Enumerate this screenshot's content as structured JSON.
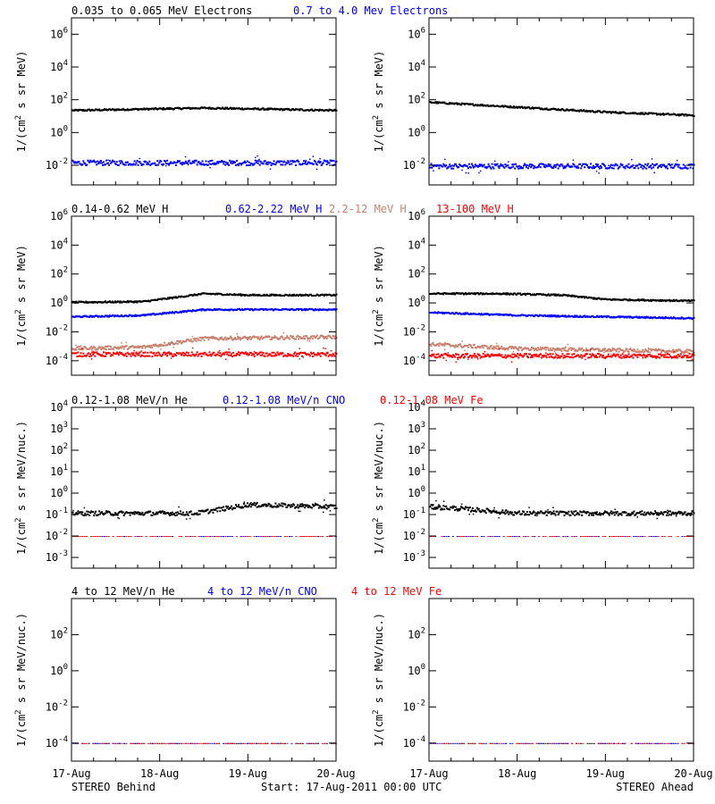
{
  "colors": {
    "black": "#000000",
    "blue": "#0000ff",
    "tan": "#c8806c",
    "red": "#ff0000"
  },
  "rows": [
    {
      "labels": [
        {
          "text": "0.035 to 0.065 MeV Electrons",
          "color": "black"
        },
        {
          "text": "0.7 to 4.0 Mev Electrons",
          "color": "blue"
        }
      ],
      "ylabel": "1/(cm2 s sr MeV)",
      "ylabel_parts": [
        "1/(cm",
        "2",
        " s sr MeV)"
      ],
      "yticks": [
        {
          "exp": "-2",
          "v": -2
        },
        {
          "exp": "0",
          "v": 0
        },
        {
          "exp": "2",
          "v": 2
        },
        {
          "exp": "4",
          "v": 4
        },
        {
          "exp": "6",
          "v": 6
        }
      ]
    },
    {
      "labels": [
        {
          "text": "0.14-0.62 MeV H",
          "color": "black"
        },
        {
          "text": "0.62-2.22 MeV H",
          "color": "blue"
        },
        {
          "text": "2.2-12 MeV H",
          "color": "tan"
        },
        {
          "text": "13-100 MeV H",
          "color": "red"
        }
      ],
      "ylabel": "1/(cm2 s sr MeV)",
      "ylabel_parts": [
        "1/(cm",
        "2",
        " s sr MeV)"
      ],
      "yticks": [
        {
          "exp": "-4",
          "v": -4
        },
        {
          "exp": "-2",
          "v": -2
        },
        {
          "exp": "0",
          "v": 0
        },
        {
          "exp": "2",
          "v": 2
        },
        {
          "exp": "4",
          "v": 4
        },
        {
          "exp": "6",
          "v": 6
        }
      ]
    },
    {
      "labels": [
        {
          "text": "0.12-1.08 MeV/n He",
          "color": "black"
        },
        {
          "text": "0.12-1.08 MeV/n CNO",
          "color": "blue"
        },
        {
          "text": "0.12-1.08 MeV Fe",
          "color": "red"
        }
      ],
      "ylabel": "1/(cm2 s sr MeV/nuc.)",
      "ylabel_parts": [
        "1/(cm",
        "2",
        " s sr MeV/nuc.)"
      ],
      "yticks": [
        {
          "exp": "-3",
          "v": -3
        },
        {
          "exp": "-2",
          "v": -2
        },
        {
          "exp": "-1",
          "v": -1
        },
        {
          "exp": "0",
          "v": 0
        },
        {
          "exp": "1",
          "v": 1
        },
        {
          "exp": "2",
          "v": 2
        },
        {
          "exp": "3",
          "v": 3
        },
        {
          "exp": "4",
          "v": 4
        }
      ]
    },
    {
      "labels": [
        {
          "text": "4 to 12 MeV/n He",
          "color": "black"
        },
        {
          "text": "4 to 12 MeV/n CNO",
          "color": "blue"
        },
        {
          "text": "4 to 12 MeV Fe",
          "color": "red"
        }
      ],
      "ylabel": "1/(cm2 s sr MeV/nuc.)",
      "ylabel_parts": [
        "1/(cm",
        "2",
        " s sr MeV/nuc.)"
      ],
      "yticks": [
        {
          "exp": "-4",
          "v": -4
        },
        {
          "exp": "-2",
          "v": -2
        },
        {
          "exp": "0",
          "v": 0
        },
        {
          "exp": "2",
          "v": 2
        }
      ]
    }
  ],
  "xticks": [
    "17-Aug",
    "18-Aug",
    "19-Aug",
    "20-Aug"
  ],
  "footer": {
    "left": "STEREO Behind",
    "center": "Start: 17-Aug-2011 00:00 UTC",
    "right": "STEREO Ahead"
  },
  "chart_data": [
    {
      "type": "scatter",
      "spacecraft": "STEREO Behind",
      "ylim_log10": [
        -3.2,
        7
      ],
      "xlim_days": [
        0,
        3
      ],
      "series": [
        {
          "name": "0.035 to 0.065 MeV Electrons",
          "color": "black",
          "x": [
            0,
            1,
            1.5,
            2,
            3
          ],
          "y_log10": [
            1.4,
            1.5,
            1.55,
            1.5,
            1.4
          ],
          "spread": 0.05
        },
        {
          "name": "0.7 to 4.0 Mev Electrons",
          "color": "blue",
          "x": [
            0,
            3
          ],
          "y_log10": [
            -1.8,
            -1.8
          ],
          "spread": 0.15
        }
      ]
    },
    {
      "type": "scatter",
      "spacecraft": "STEREO Ahead",
      "ylim_log10": [
        -3.2,
        7
      ],
      "xlim_days": [
        0,
        3
      ],
      "series": [
        {
          "name": "0.035 to 0.065 MeV Electrons",
          "color": "black",
          "x": [
            0,
            1,
            2,
            3
          ],
          "y_log10": [
            1.9,
            1.6,
            1.3,
            1.1
          ],
          "spread": 0.05
        },
        {
          "name": "0.7 to 4.0 Mev Electrons",
          "color": "blue",
          "x": [
            0,
            3
          ],
          "y_log10": [
            -2.0,
            -2.0
          ],
          "spread": 0.15
        }
      ]
    },
    {
      "type": "scatter",
      "spacecraft": "STEREO Behind",
      "ylim_log10": [
        -5,
        6
      ],
      "xlim_days": [
        0,
        3
      ],
      "series": [
        {
          "name": "0.14-0.62 MeV H",
          "color": "black",
          "x": [
            0,
            0.8,
            1.5,
            2,
            3
          ],
          "y_log10": [
            0.1,
            0.15,
            0.7,
            0.6,
            0.6
          ],
          "spread": 0.05
        },
        {
          "name": "0.62-2.22 MeV H",
          "color": "blue",
          "x": [
            0,
            0.8,
            1.5,
            3
          ],
          "y_log10": [
            -0.9,
            -0.8,
            -0.4,
            -0.4
          ],
          "spread": 0.05
        },
        {
          "name": "2.2-12 MeV H",
          "color": "tan",
          "x": [
            0,
            0.8,
            1.5,
            3
          ],
          "y_log10": [
            -3.1,
            -3,
            -2.4,
            -2.3
          ],
          "spread": 0.12
        },
        {
          "name": "13-100 MeV H",
          "color": "red",
          "x": [
            0,
            3
          ],
          "y_log10": [
            -3.5,
            -3.5
          ],
          "spread": 0.15
        }
      ]
    },
    {
      "type": "scatter",
      "spacecraft": "STEREO Ahead",
      "ylim_log10": [
        -5,
        6
      ],
      "xlim_days": [
        0,
        3
      ],
      "series": [
        {
          "name": "0.14-0.62 MeV H",
          "color": "black",
          "x": [
            0,
            0.8,
            1.5,
            2,
            3
          ],
          "y_log10": [
            0.7,
            0.7,
            0.6,
            0.3,
            0.2
          ],
          "spread": 0.05
        },
        {
          "name": "0.62-2.22 MeV H",
          "color": "blue",
          "x": [
            0,
            1,
            2,
            3
          ],
          "y_log10": [
            -0.6,
            -0.8,
            -0.9,
            -1
          ],
          "spread": 0.05
        },
        {
          "name": "2.2-12 MeV H",
          "color": "tan",
          "x": [
            0,
            1,
            3
          ],
          "y_log10": [
            -2.8,
            -3.1,
            -3.3
          ],
          "spread": 0.12
        },
        {
          "name": "13-100 MeV H",
          "color": "red",
          "x": [
            0,
            3
          ],
          "y_log10": [
            -3.6,
            -3.6
          ],
          "spread": 0.15
        }
      ]
    },
    {
      "type": "scatter",
      "spacecraft": "STEREO Behind",
      "ylim_log10": [
        -3.5,
        4
      ],
      "xlim_days": [
        0,
        3
      ],
      "series": [
        {
          "name": "0.12-1.08 MeV/n He",
          "color": "black",
          "x": [
            0,
            1.4,
            2,
            3
          ],
          "y_log10": [
            -0.9,
            -0.9,
            -0.5,
            -0.6
          ],
          "spread": 0.1
        },
        {
          "name": "0.12-1.08 MeV/n CNO",
          "color": "blue",
          "x": [
            0,
            3
          ],
          "y_log10": [
            -2,
            -2
          ],
          "spread": 0
        },
        {
          "name": "0.12-1.08 MeV Fe",
          "color": "red",
          "x": [
            0,
            3
          ],
          "y_log10": [
            -2,
            -2
          ],
          "spread": 0
        }
      ]
    },
    {
      "type": "scatter",
      "spacecraft": "STEREO Ahead",
      "ylim_log10": [
        -3.5,
        4
      ],
      "xlim_days": [
        0,
        3
      ],
      "series": [
        {
          "name": "0.12-1.08 MeV/n He",
          "color": "black",
          "x": [
            0,
            0.4,
            1,
            3
          ],
          "y_log10": [
            -0.6,
            -0.7,
            -0.9,
            -0.9
          ],
          "spread": 0.1
        },
        {
          "name": "0.12-1.08 MeV/n CNO",
          "color": "blue",
          "x": [
            0,
            3
          ],
          "y_log10": [
            -2,
            -2
          ],
          "spread": 0
        },
        {
          "name": "0.12-1.08 MeV Fe",
          "color": "red",
          "x": [
            0,
            3
          ],
          "y_log10": [
            -2,
            -2
          ],
          "spread": 0
        }
      ]
    },
    {
      "type": "scatter",
      "spacecraft": "STEREO Behind",
      "ylim_log10": [
        -5,
        4
      ],
      "xlim_days": [
        0,
        3
      ],
      "series": [
        {
          "name": "4 to 12 MeV/n He",
          "color": "black",
          "x": [
            0,
            3
          ],
          "y_log10": [
            -4,
            -4
          ],
          "spread": 0
        },
        {
          "name": "4 to 12 MeV/n CNO",
          "color": "blue",
          "x": [
            0,
            3
          ],
          "y_log10": [
            -4,
            -4
          ],
          "spread": 0
        },
        {
          "name": "4 to 12 MeV Fe",
          "color": "red",
          "x": [
            0,
            3
          ],
          "y_log10": [
            -4,
            -4
          ],
          "spread": 0
        }
      ]
    },
    {
      "type": "scatter",
      "spacecraft": "STEREO Ahead",
      "ylim_log10": [
        -5,
        4
      ],
      "xlim_days": [
        0,
        3
      ],
      "series": [
        {
          "name": "4 to 12 MeV/n He",
          "color": "black",
          "x": [
            0,
            3
          ],
          "y_log10": [
            -4,
            -4
          ],
          "spread": 0
        },
        {
          "name": "4 to 12 MeV/n CNO",
          "color": "blue",
          "x": [
            0,
            3
          ],
          "y_log10": [
            -4,
            -4
          ],
          "spread": 0
        },
        {
          "name": "4 to 12 MeV Fe",
          "color": "red",
          "x": [
            0,
            3
          ],
          "y_log10": [
            -4,
            -4
          ],
          "spread": 0
        }
      ]
    }
  ]
}
